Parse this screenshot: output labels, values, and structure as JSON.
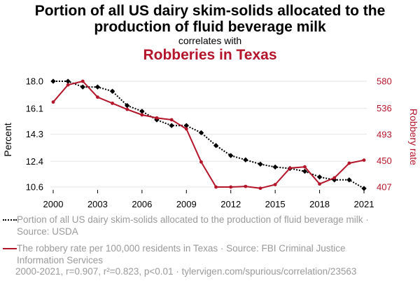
{
  "header": {
    "title": "Portion of all US dairy skim-solids allocated to the production of fluid beverage milk",
    "subtitle": "correlates with",
    "title2": "Robberies in Texas"
  },
  "chart_data": {
    "type": "line",
    "x": [
      2000,
      2001,
      2002,
      2003,
      2004,
      2005,
      2006,
      2007,
      2008,
      2009,
      2010,
      2011,
      2012,
      2013,
      2014,
      2015,
      2016,
      2017,
      2018,
      2019,
      2020,
      2021
    ],
    "xticks": [
      "2000",
      "2003",
      "2006",
      "2009",
      "2012",
      "2015",
      "2018",
      "2021"
    ],
    "series": [
      {
        "name": "Portion of all US dairy skim-solids allocated to the production of fluid beverage milk · Source: USDA",
        "axis": "left",
        "color": "#000000",
        "style": "dotted",
        "values": [
          18.0,
          18.0,
          17.6,
          17.6,
          17.3,
          16.3,
          15.9,
          15.3,
          14.9,
          14.9,
          14.4,
          13.5,
          12.8,
          12.5,
          12.2,
          12.0,
          11.9,
          11.7,
          11.3,
          11.1,
          11.1,
          10.5
        ]
      },
      {
        "name": "The robbery rate per 100,000 residents in Texas · Source: FBI Criminal Justice Information Services",
        "axis": "right",
        "color": "#b5152b",
        "style": "solid",
        "values": [
          546,
          574,
          580,
          554,
          544,
          534,
          525,
          520,
          517,
          502,
          448,
          407,
          407,
          408,
          405,
          411,
          438,
          440,
          412,
          422,
          446,
          451
        ]
      }
    ],
    "left_axis": {
      "label": "Percent",
      "ticks": [
        "18.0",
        "16.1",
        "14.3",
        "12.4",
        "10.6"
      ],
      "ylim": [
        10.6,
        18.0
      ]
    },
    "right_axis": {
      "label": "Robbery rate",
      "ticks": [
        "580",
        "536",
        "493",
        "450",
        "407"
      ],
      "ylim": [
        407,
        580
      ]
    },
    "grid": true,
    "legend_position": "bottom"
  },
  "footer": {
    "stats": "2000-2021, r=0.907, r²=0.823, p<0.01 · tylervigen.com/spurious/correlation/23563"
  }
}
